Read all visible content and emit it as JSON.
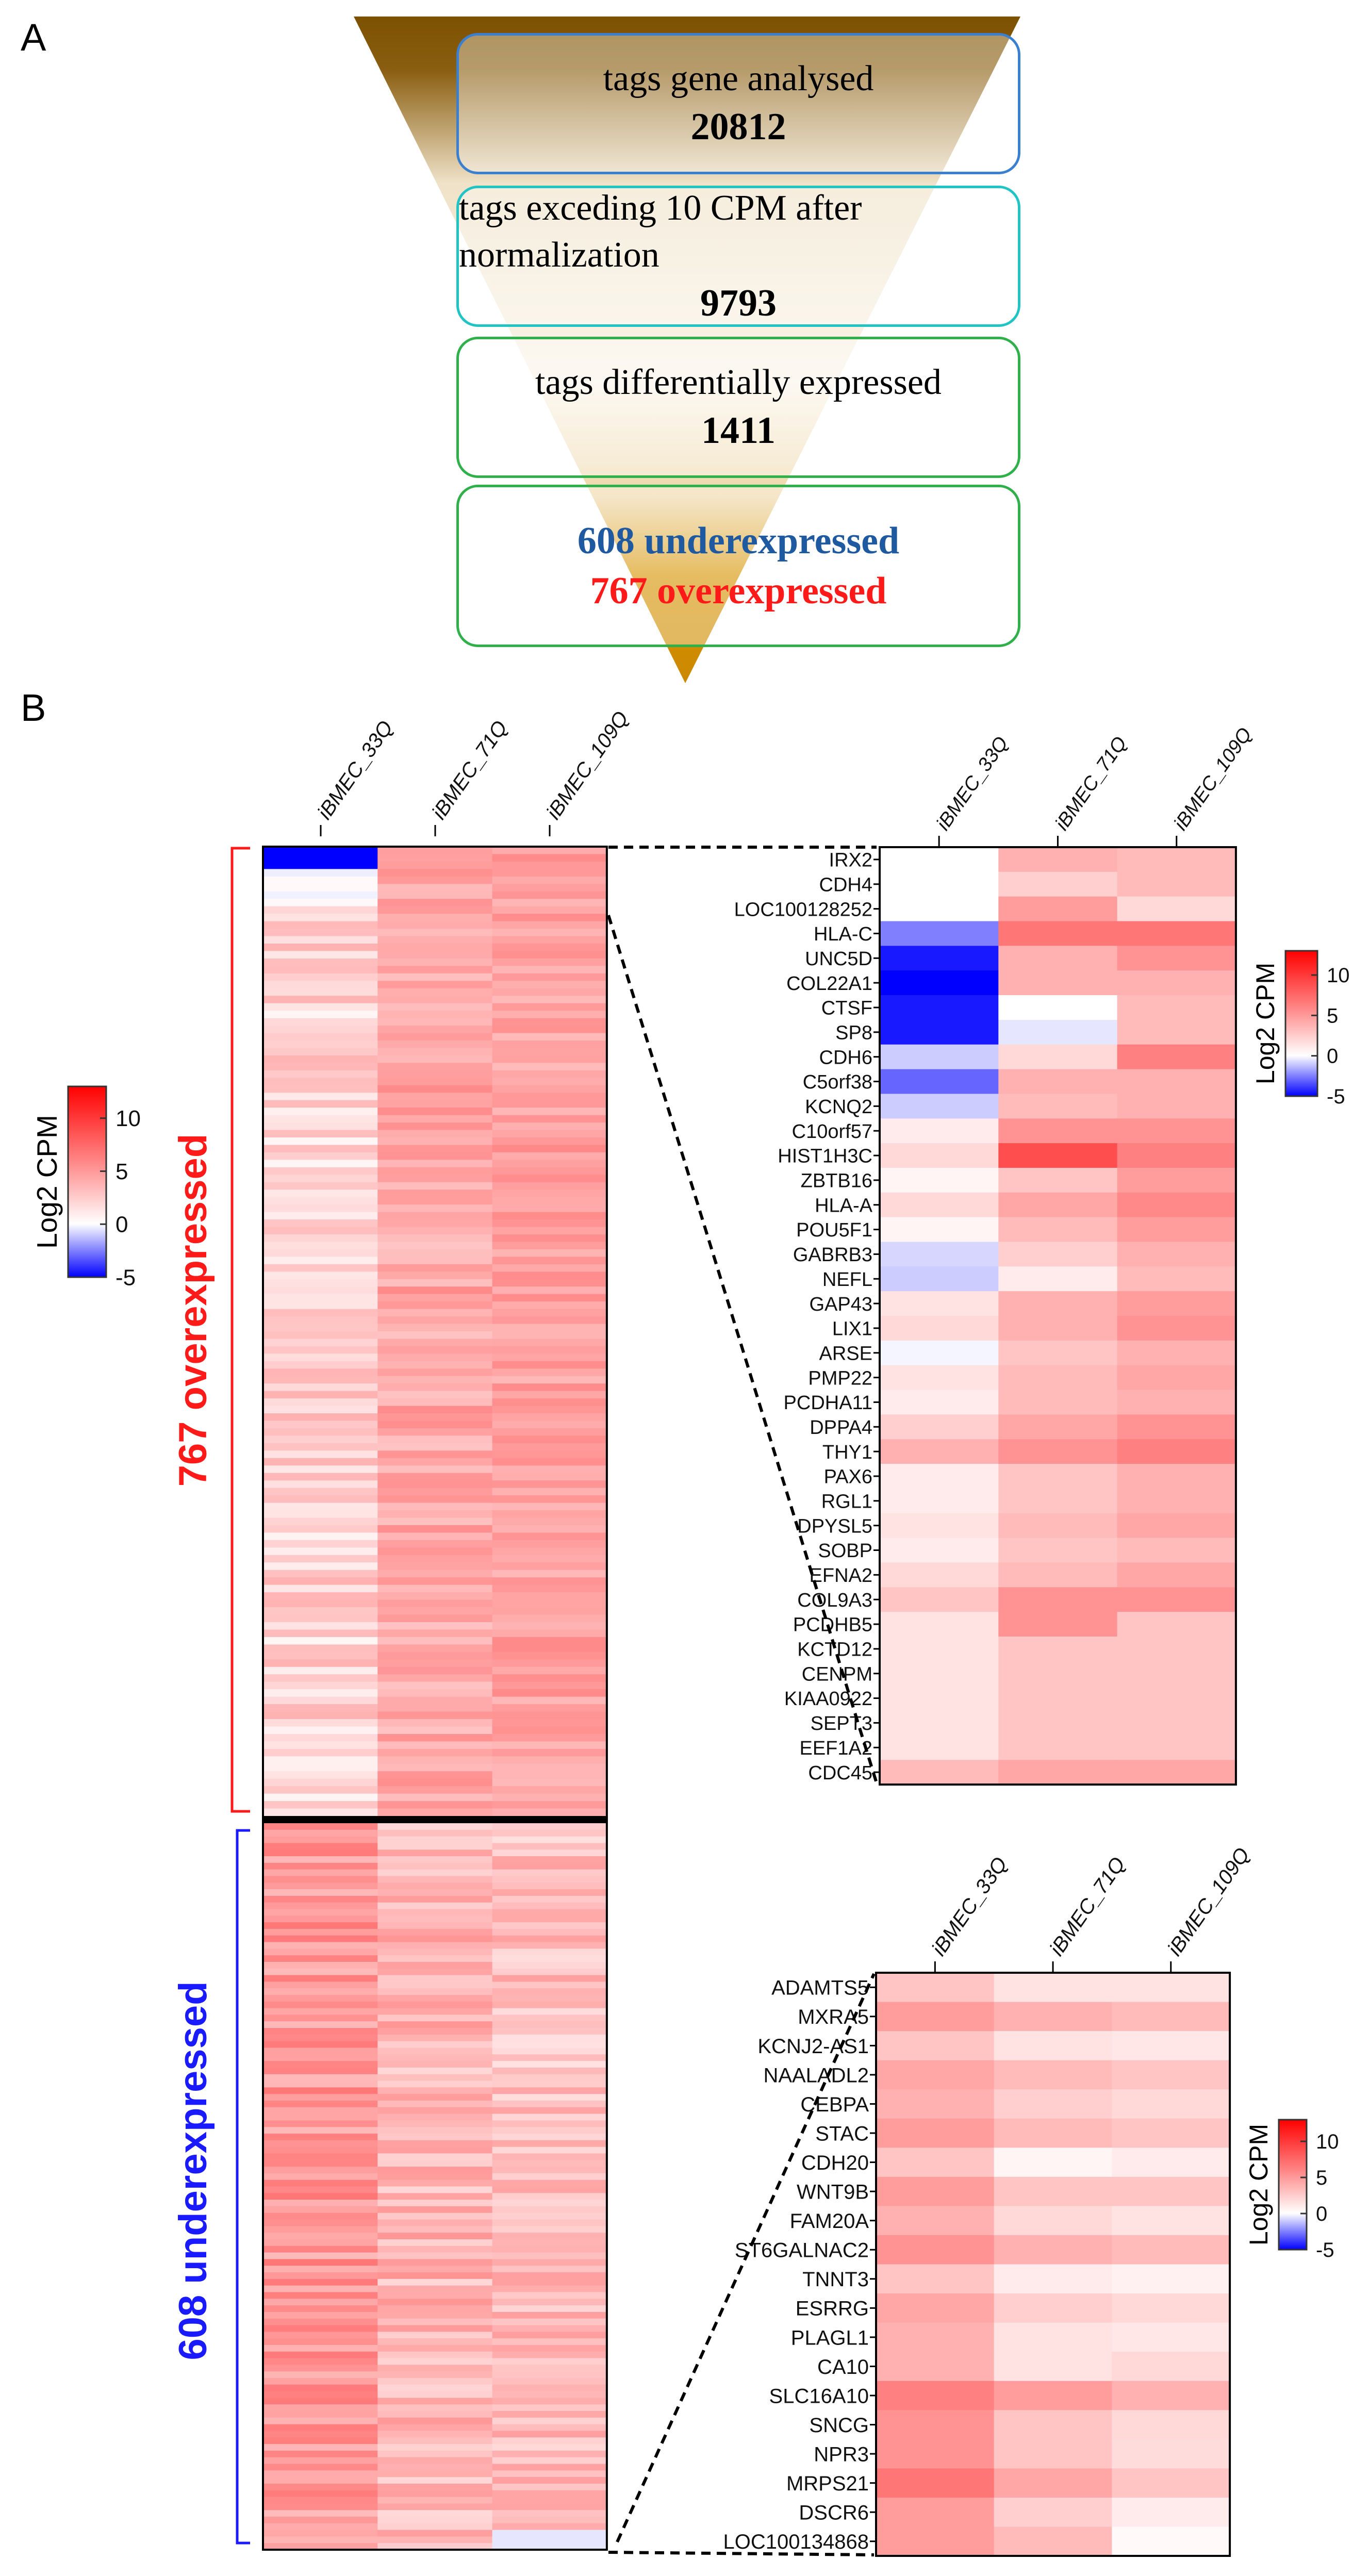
{
  "panel_a": {
    "label": "A",
    "funnel": [
      {
        "text": "tags gene analysed",
        "value": "20812"
      },
      {
        "text": "tags exceding  10 CPM after normalization",
        "value": "9793"
      },
      {
        "text": "tags differentially  expressed",
        "value": "1411"
      }
    ],
    "under_text": "608 underexpressed",
    "over_text": "767 overexpressed",
    "colors": {
      "under": "#1f5aa0",
      "over": "#ff1a1a",
      "box1": "#3b7fd0",
      "box2": "#20c4c4",
      "box3": "#2fb04a",
      "box4": "#2fb04a"
    }
  },
  "panel_b": {
    "label": "B",
    "over_label": "767 overexpressed",
    "under_label": "608 underexpressed",
    "over_color": "#ff1a1a",
    "under_color": "#1a1aff"
  },
  "chart_data": [
    {
      "type": "heatmap",
      "name": "overview",
      "columns": [
        "iBMEC_33Q",
        "iBMEC_71Q",
        "iBMEC_109Q"
      ],
      "sections": [
        {
          "label": "767 overexpressed",
          "rows": 767
        },
        {
          "label": "608 underexpressed",
          "rows": 608
        }
      ],
      "legend": {
        "title": "Log2 CPM",
        "ticks": [
          "10",
          "5",
          "0",
          "-5"
        ],
        "range": [
          -5,
          13
        ]
      }
    },
    {
      "type": "heatmap",
      "name": "overexpressed-zoom",
      "columns": [
        "iBMEC_33Q",
        "iBMEC_71Q",
        "iBMEC_109Q"
      ],
      "legend": {
        "title": "Log2 CPM",
        "ticks": [
          "10",
          "5",
          "0",
          "-5"
        ],
        "range": [
          -5,
          13
        ]
      },
      "rows": [
        "IRX2",
        "CDH4",
        "LOC100128252",
        "HLA-C",
        "UNC5D",
        "COL22A1",
        "CTSF",
        "SP8",
        "CDH6",
        "C5orf38",
        "KCNQ2",
        "C10orf57",
        "HIST1H3C",
        "ZBTB16",
        "HLA-A",
        "POU5F1",
        "GABRB3",
        "NEFL",
        "GAP43",
        "LIX1",
        "ARSE",
        "PMP22",
        "PCDHA11",
        "DPPA4",
        "THY1",
        "PAX6",
        "RGL1",
        "DPYSL5",
        "SOBP",
        "EFNA2",
        "COL9A3",
        "PCDHB5",
        "KCTD12",
        "CENPM",
        "KIAA0922",
        "SEPT3",
        "EEF1A2",
        "CDC45"
      ],
      "values": [
        [
          0,
          4,
          3.5
        ],
        [
          0,
          2.5,
          3.5
        ],
        [
          0,
          5,
          2
        ],
        [
          -2.5,
          7,
          7
        ],
        [
          -4.5,
          4,
          5.5
        ],
        [
          -5,
          4,
          4
        ],
        [
          -4.5,
          0,
          3.5
        ],
        [
          -4.5,
          -0.5,
          3.5
        ],
        [
          -1,
          2,
          6.5
        ],
        [
          -3,
          4,
          4
        ],
        [
          -1,
          3.5,
          4
        ],
        [
          1,
          5.5,
          5.5
        ],
        [
          2,
          9,
          6.5
        ],
        [
          0.5,
          3,
          5
        ],
        [
          2,
          4.5,
          6
        ],
        [
          0.5,
          3.5,
          5
        ],
        [
          -0.8,
          2.5,
          4
        ],
        [
          -1,
          1,
          3.5
        ],
        [
          1.5,
          4,
          5
        ],
        [
          2,
          4,
          5.5
        ],
        [
          -0.2,
          3,
          4
        ],
        [
          1.5,
          3.5,
          4.5
        ],
        [
          1,
          3.5,
          4
        ],
        [
          2.5,
          4.5,
          5.5
        ],
        [
          4,
          5.5,
          6.5
        ],
        [
          1,
          3,
          4
        ],
        [
          1,
          3,
          4
        ],
        [
          1.5,
          3.5,
          4.5
        ],
        [
          1,
          3,
          3.5
        ],
        [
          2,
          3.5,
          4.5
        ],
        [
          3,
          5.5,
          5.5
        ],
        [
          1.5,
          5.5,
          3
        ],
        [
          1.5,
          3,
          3
        ],
        [
          1.5,
          3,
          3
        ],
        [
          1.5,
          3,
          3
        ],
        [
          1.5,
          3,
          3
        ],
        [
          1.5,
          3,
          3
        ],
        [
          3.5,
          4.5,
          4.5
        ]
      ]
    },
    {
      "type": "heatmap",
      "name": "underexpressed-zoom",
      "columns": [
        "iBMEC_33Q",
        "iBMEC_71Q",
        "iBMEC_109Q"
      ],
      "legend": {
        "title": "Log2 CPM",
        "ticks": [
          "10",
          "5",
          "0",
          "-5"
        ],
        "range": [
          -5,
          13
        ]
      },
      "rows": [
        "ADAMTS5",
        "MXRA5",
        "KCNJ2-AS1",
        "NAALADL2",
        "CEBPA",
        "STAC",
        "CDH20",
        "WNT9B",
        "FAM20A",
        "ST6GALNAC2",
        "TNNT3",
        "ESRRG",
        "PLAGL1",
        "CA10",
        "SLC16A10",
        "SNCG",
        "NPR3",
        "MRPS21",
        "DSCR6",
        "LOC100134868"
      ],
      "values": [
        [
          3,
          1.5,
          1.5
        ],
        [
          5,
          4,
          3.5
        ],
        [
          3,
          1.5,
          1.2
        ],
        [
          4.5,
          3.5,
          3
        ],
        [
          4,
          2.5,
          2
        ],
        [
          5,
          3.5,
          3
        ],
        [
          3,
          0.5,
          1
        ],
        [
          5,
          3,
          3
        ],
        [
          4,
          2,
          1.5
        ],
        [
          5.5,
          4,
          3.5
        ],
        [
          3,
          1,
          0.7
        ],
        [
          4.5,
          2.5,
          2
        ],
        [
          4,
          1.5,
          1.2
        ],
        [
          4,
          1.5,
          2
        ],
        [
          6.5,
          5,
          4
        ],
        [
          5.5,
          3,
          2
        ],
        [
          5.5,
          3,
          1.8
        ],
        [
          7,
          4.5,
          3
        ],
        [
          5,
          2.5,
          1
        ],
        [
          5,
          3.5,
          0.3
        ]
      ]
    }
  ]
}
